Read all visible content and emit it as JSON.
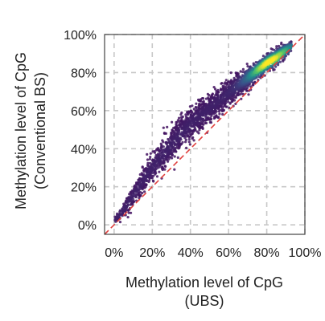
{
  "chart_data": {
    "type": "scatter",
    "style": "density",
    "title": "",
    "xlabel": [
      "Methylation level of CpG",
      "(UBS)"
    ],
    "ylabel": [
      "Methylation level of CpG",
      "(Conventional BS)"
    ],
    "xlim": [
      -0.05,
      1.0
    ],
    "ylim": [
      -0.05,
      1.0
    ],
    "xticks": [
      0,
      0.2,
      0.4,
      0.6,
      0.8,
      1.0
    ],
    "yticks": [
      0,
      0.2,
      0.4,
      0.6,
      0.8,
      1.0
    ],
    "xtick_labels": [
      "0%",
      "20%",
      "40%",
      "60%",
      "80%",
      "100%"
    ],
    "ytick_labels": [
      "0%",
      "20%",
      "40%",
      "60%",
      "80%",
      "100%"
    ],
    "grid": true,
    "reference_line": {
      "x": [
        -0.05,
        1.0
      ],
      "y": [
        -0.05,
        1.0
      ],
      "color": "#e0413f",
      "style": "dashed"
    },
    "colormap": "viridis",
    "density_trend": {
      "x": [
        0.0,
        0.05,
        0.1,
        0.15,
        0.2,
        0.25,
        0.3,
        0.35,
        0.4,
        0.45,
        0.5,
        0.55,
        0.6,
        0.65,
        0.7,
        0.75,
        0.8,
        0.85,
        0.9,
        0.93
      ],
      "y_mean": [
        0.02,
        0.08,
        0.15,
        0.23,
        0.3,
        0.36,
        0.42,
        0.48,
        0.53,
        0.57,
        0.61,
        0.65,
        0.69,
        0.73,
        0.77,
        0.81,
        0.85,
        0.88,
        0.92,
        0.94
      ],
      "y_spread": [
        0.01,
        0.03,
        0.05,
        0.06,
        0.07,
        0.08,
        0.08,
        0.08,
        0.08,
        0.07,
        0.07,
        0.06,
        0.06,
        0.05,
        0.05,
        0.04,
        0.04,
        0.04,
        0.03,
        0.02
      ]
    },
    "density_peak": {
      "x": 0.82,
      "y": 0.85
    }
  },
  "colors": {
    "grid": "#c8c8c8",
    "axis": "#444444",
    "reference_line": "#e0413f",
    "viridis_low": "#440154",
    "viridis_mid": "#21918c",
    "viridis_high": "#fde725"
  }
}
